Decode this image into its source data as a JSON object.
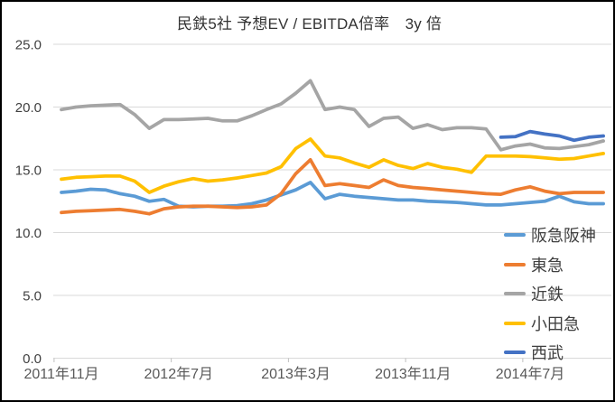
{
  "window": {
    "background": "#FFFFFF",
    "border_color": "#000000"
  },
  "chart_data": {
    "type": "line",
    "title": "民鉄5社 予想EV / EBITDA倍率　3y 倍",
    "xlabel": "",
    "ylabel": "",
    "ylim": [
      0,
      25
    ],
    "grid": "horizontal",
    "gridline_color": "#D9D9D9",
    "axis_text_color": "#595959",
    "legend_position": "bottom-right-overlay",
    "y_tick_labels": [
      "0.0",
      "5.0",
      "10.0",
      "15.0",
      "20.0",
      "25.0"
    ],
    "x_tick_labels": [
      {
        "label": "2011年11月",
        "index": 0
      },
      {
        "label": "2012年7月",
        "index": 8
      },
      {
        "label": "2013年3月",
        "index": 16
      },
      {
        "label": "2013年11月",
        "index": 24
      },
      {
        "label": "2014年7月",
        "index": 32
      }
    ],
    "categories": [
      "2011年11月",
      "2011年12月",
      "2012年1月",
      "2012年2月",
      "2012年3月",
      "2012年4月",
      "2012年5月",
      "2012年6月",
      "2012年7月",
      "2012年8月",
      "2012年9月",
      "2012年10月",
      "2012年11月",
      "2012年12月",
      "2013年1月",
      "2013年2月",
      "2013年3月",
      "2013年4月",
      "2013年5月",
      "2013年6月",
      "2013年7月",
      "2013年8月",
      "2013年9月",
      "2013年10月",
      "2013年11月",
      "2013年12月",
      "2014年1月",
      "2014年2月",
      "2014年3月",
      "2014年4月",
      "2014年5月",
      "2014年6月",
      "2014年7月",
      "2014年8月",
      "2014年9月",
      "2014年10月",
      "2014年11月",
      "2014年12月"
    ],
    "series": [
      {
        "id": "hankyu-hanshin",
        "name": "阪急阪神",
        "color": "#5B9BD5",
        "values": [
          13.2,
          13.3,
          13.45,
          13.4,
          13.1,
          12.9,
          12.5,
          12.65,
          12.1,
          12.05,
          12.1,
          12.1,
          12.15,
          12.3,
          12.6,
          13.0,
          13.4,
          14.0,
          12.7,
          13.05,
          12.9,
          12.8,
          12.7,
          12.6,
          12.6,
          12.5,
          12.45,
          12.4,
          12.3,
          12.2,
          12.2,
          12.3,
          12.4,
          12.5,
          12.9,
          12.45,
          12.3,
          12.3
        ]
      },
      {
        "id": "tokyu",
        "name": "東急",
        "color": "#ED7D31",
        "values": [
          11.6,
          11.7,
          11.75,
          11.8,
          11.85,
          11.7,
          11.5,
          11.9,
          12.05,
          12.1,
          12.1,
          12.05,
          12.0,
          12.05,
          12.2,
          13.1,
          14.7,
          15.8,
          13.75,
          13.9,
          13.75,
          13.6,
          14.2,
          13.75,
          13.6,
          13.5,
          13.4,
          13.3,
          13.2,
          13.1,
          13.05,
          13.4,
          13.65,
          13.3,
          13.1,
          13.2,
          13.2,
          13.2
        ]
      },
      {
        "id": "kintetsu",
        "name": "近鉄",
        "color": "#A5A5A5",
        "values": [
          19.8,
          20.0,
          20.1,
          20.15,
          20.2,
          19.4,
          18.3,
          19.0,
          19.0,
          19.05,
          19.1,
          18.9,
          18.9,
          19.3,
          19.8,
          20.25,
          21.1,
          22.1,
          19.8,
          20.0,
          19.8,
          18.45,
          19.1,
          19.2,
          18.3,
          18.6,
          18.2,
          18.35,
          18.35,
          18.25,
          16.6,
          16.9,
          17.05,
          16.75,
          16.7,
          16.85,
          17.0,
          17.3
        ]
      },
      {
        "id": "odakyu",
        "name": "小田急",
        "color": "#FFC000",
        "values": [
          14.25,
          14.4,
          14.45,
          14.5,
          14.5,
          14.1,
          13.2,
          13.7,
          14.05,
          14.3,
          14.1,
          14.2,
          14.35,
          14.55,
          14.75,
          15.25,
          16.7,
          17.45,
          16.1,
          15.95,
          15.55,
          15.2,
          15.8,
          15.35,
          15.1,
          15.5,
          15.2,
          15.05,
          14.8,
          16.1,
          16.1,
          16.1,
          16.05,
          15.95,
          15.85,
          15.9,
          16.1,
          16.3
        ]
      },
      {
        "id": "seibu",
        "name": "西武",
        "color": "#4472C4",
        "values": [
          null,
          null,
          null,
          null,
          null,
          null,
          null,
          null,
          null,
          null,
          null,
          null,
          null,
          null,
          null,
          null,
          null,
          null,
          null,
          null,
          null,
          null,
          null,
          null,
          null,
          null,
          null,
          null,
          null,
          null,
          17.6,
          17.65,
          18.05,
          17.85,
          17.7,
          17.35,
          17.6,
          17.7
        ]
      }
    ]
  }
}
